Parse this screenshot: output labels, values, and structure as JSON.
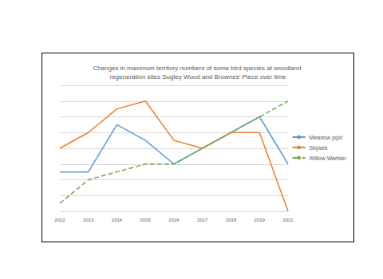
{
  "chart_data": {
    "type": "line",
    "title": "Changes in maximum territory numbers of some bird species at woodland regeneration sites Sugley Wood and Brownes' Piece over time",
    "categories": [
      "2012",
      "2013",
      "2014",
      "2015",
      "2016",
      "2017",
      "2018",
      "2019",
      "2021"
    ],
    "series": [
      {
        "name": "Meadow pipit",
        "color": "#5b9bd5",
        "line_style": "solid",
        "values": [
          2.5,
          2.5,
          5.5,
          4.5,
          3,
          4,
          5,
          6,
          3
        ]
      },
      {
        "name": "Skylark",
        "color": "#ed7d31",
        "line_style": "solid",
        "values": [
          4,
          5,
          6.5,
          7,
          4.5,
          4,
          5,
          5,
          0
        ]
      },
      {
        "name": "Willow Warbler",
        "color": "#70ad47",
        "line_style": "dashed",
        "values": [
          0.5,
          2,
          2.5,
          3,
          3,
          4,
          5,
          6,
          7
        ]
      }
    ],
    "ylim": [
      0,
      8
    ],
    "yticks": [
      0,
      1,
      2,
      3,
      4,
      5,
      6,
      7,
      8
    ],
    "grid": true,
    "legend": "right",
    "tick_labels": "x"
  }
}
